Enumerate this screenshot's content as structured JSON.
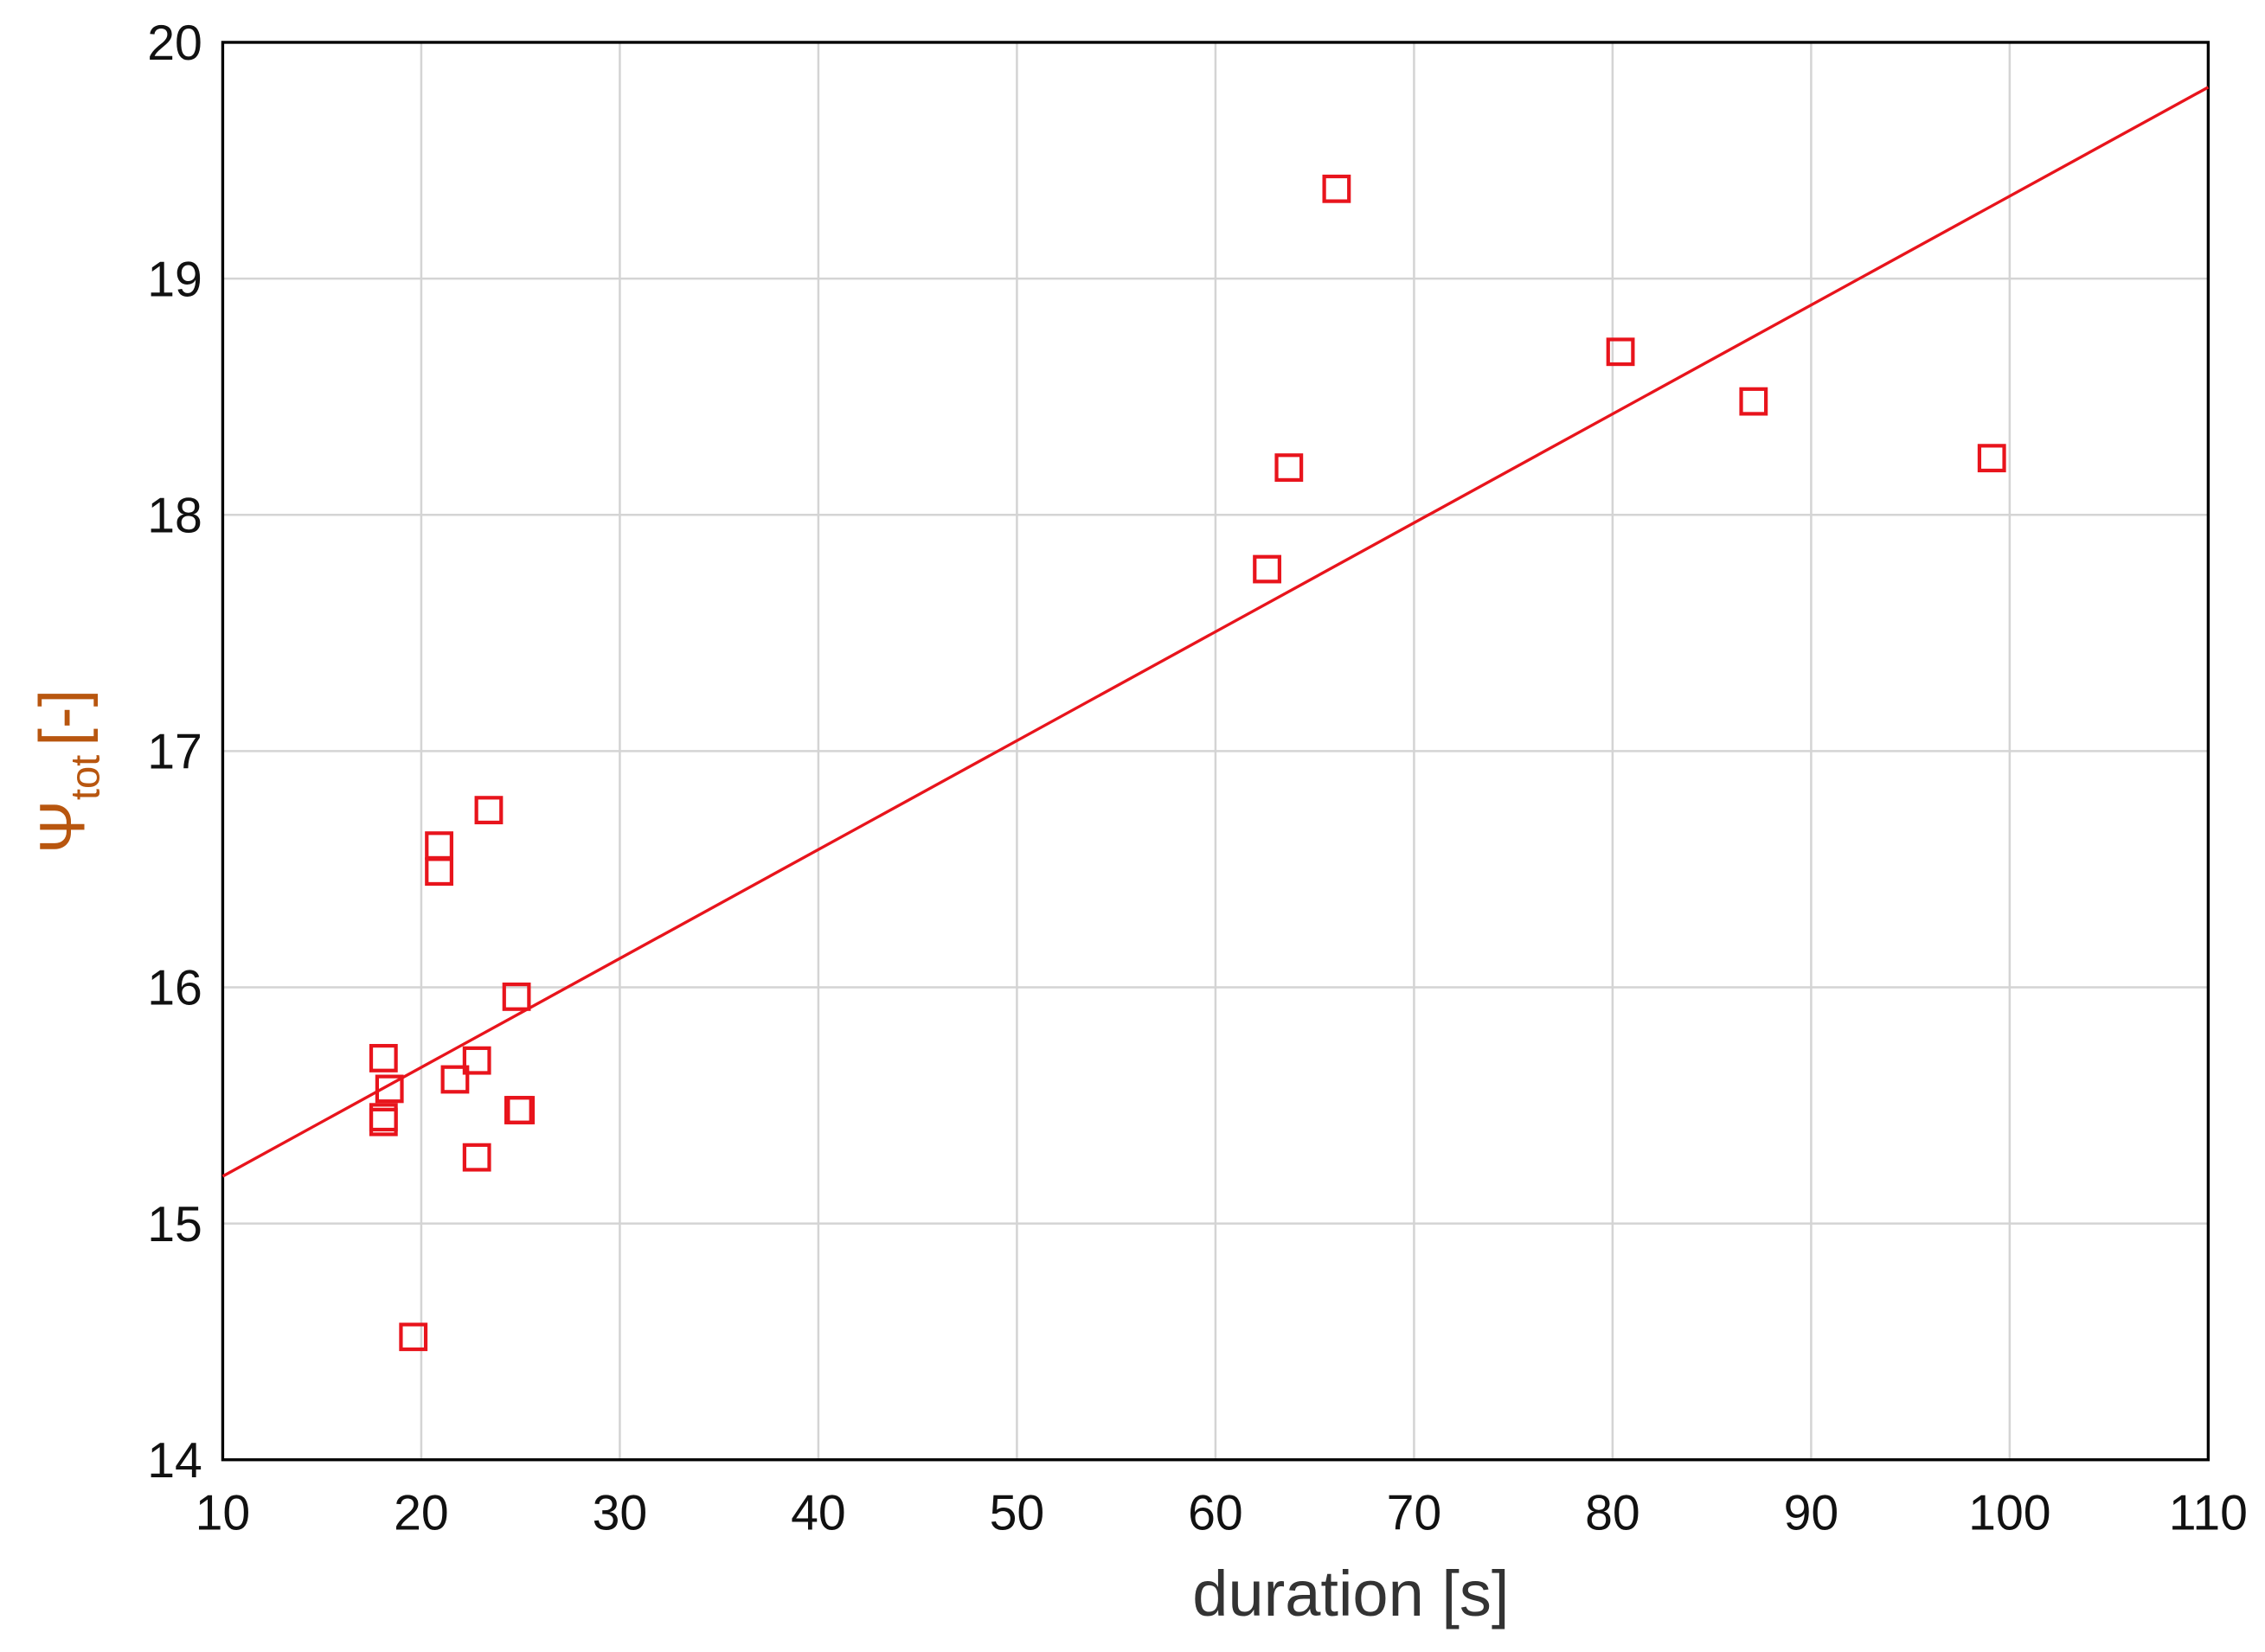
{
  "chart_data": {
    "type": "scatter",
    "xlabel": "duration [s]",
    "ylabel": {
      "symbol": "Ψ",
      "subscript": "tot",
      "unit": "[-]"
    },
    "xlim": [
      10,
      110
    ],
    "ylim": [
      14,
      20
    ],
    "xticks": [
      10,
      20,
      30,
      40,
      50,
      60,
      70,
      80,
      90,
      100,
      110
    ],
    "yticks": [
      14,
      15,
      16,
      17,
      18,
      19,
      20
    ],
    "grid": true,
    "color": "#e8141c",
    "x": [
      66.1,
      80.4,
      87.1,
      99.1,
      63.7,
      62.6,
      23.4,
      20.9,
      20.9,
      24.8,
      18.1,
      22.8,
      18.4,
      21.7,
      18.1,
      18.1,
      24.9,
      25.0,
      22.8,
      19.6
    ],
    "values": [
      19.38,
      18.69,
      18.48,
      18.24,
      18.2,
      17.77,
      16.75,
      16.6,
      16.49,
      15.96,
      15.7,
      15.69,
      15.57,
      15.61,
      15.45,
      15.43,
      15.48,
      15.48,
      15.28,
      14.52
    ],
    "fit": {
      "x": [
        10,
        110
      ],
      "values": [
        15.2,
        19.81
      ]
    }
  }
}
